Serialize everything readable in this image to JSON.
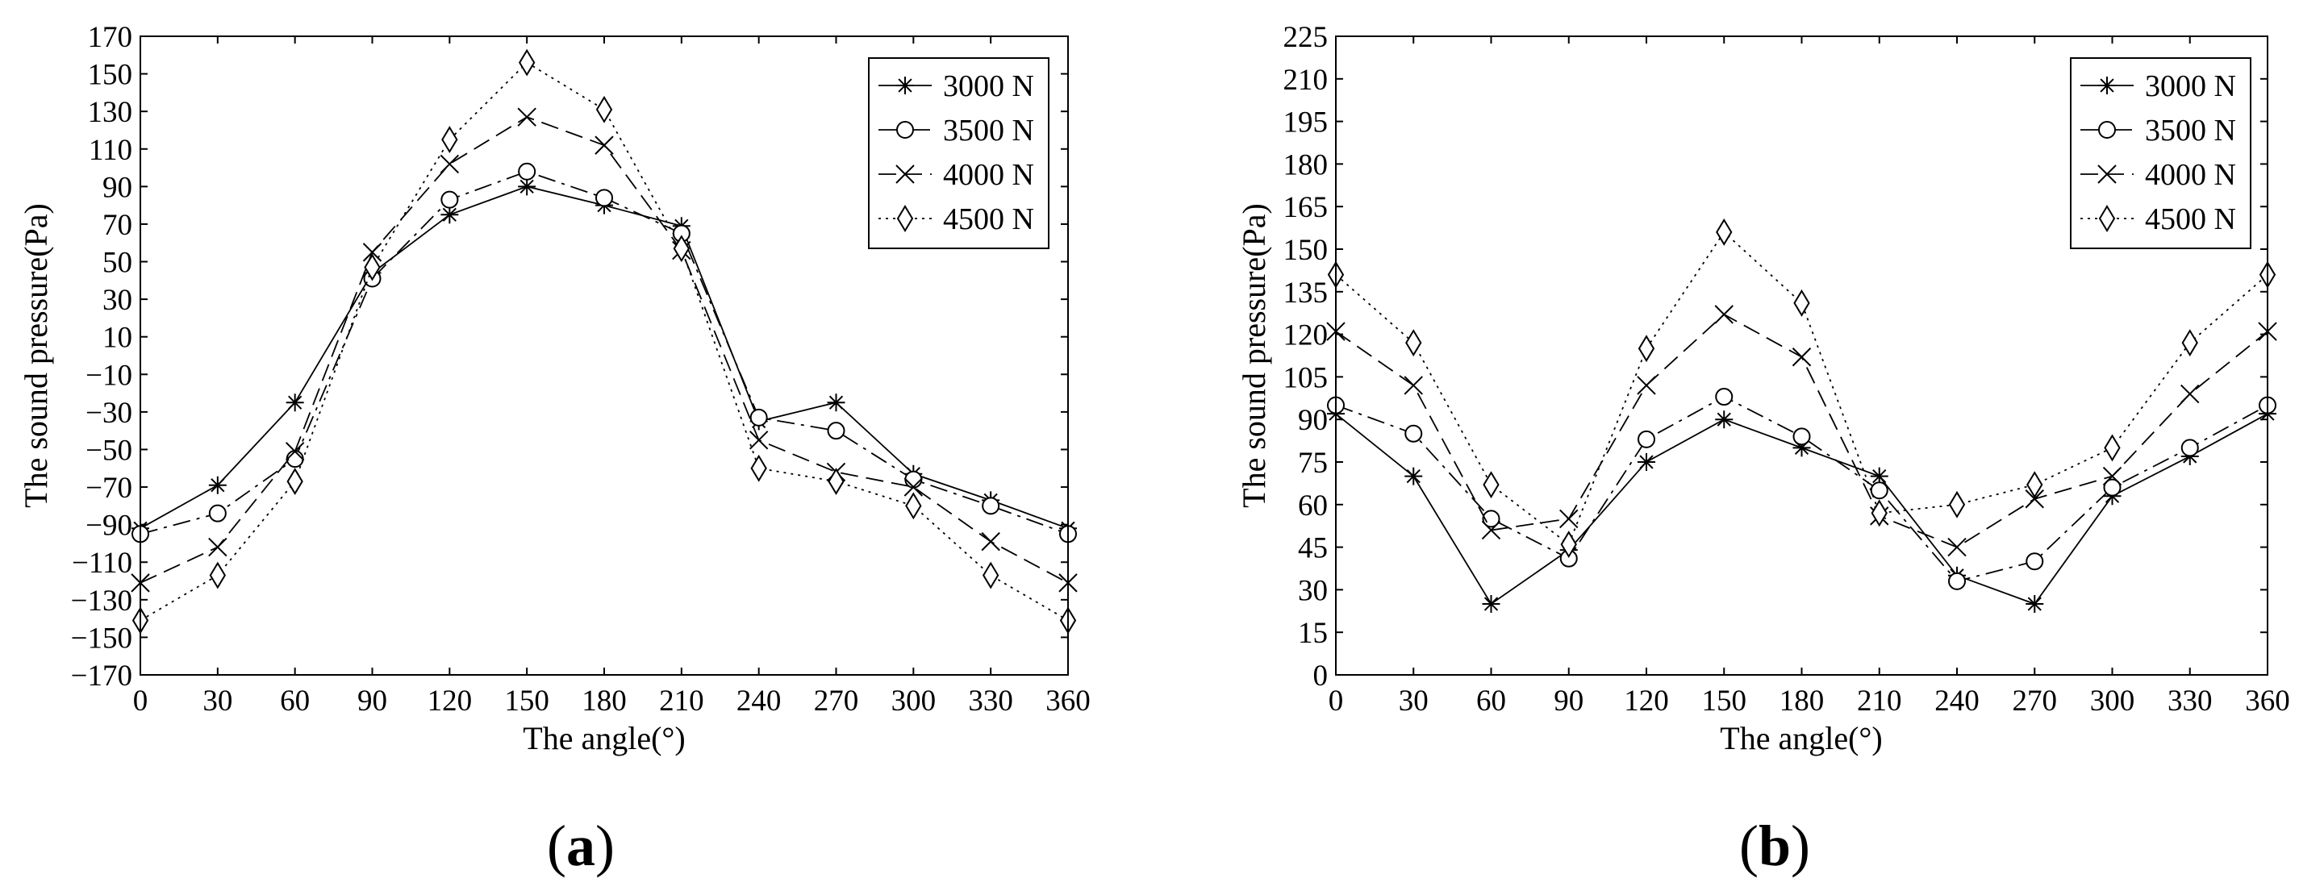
{
  "chart_data": [
    {
      "type": "line",
      "panel_label": "(a)",
      "panel_letter": "a",
      "xlabel": "The angle(°)",
      "ylabel": "The sound pressure(Pa)",
      "xlim": [
        0,
        360
      ],
      "ylim": [
        -170,
        170
      ],
      "xticks": [
        0,
        30,
        60,
        90,
        120,
        150,
        180,
        210,
        240,
        270,
        300,
        330,
        360
      ],
      "yticks": [
        -170,
        -150,
        -130,
        -110,
        -90,
        -70,
        -50,
        -30,
        -10,
        10,
        30,
        50,
        70,
        90,
        110,
        130,
        150,
        170
      ],
      "grid": false,
      "legend_position": "top-right",
      "x": [
        0,
        30,
        60,
        90,
        120,
        150,
        180,
        210,
        240,
        270,
        300,
        330,
        360
      ],
      "series": [
        {
          "name": "3000 N",
          "marker": "asterisk",
          "line": "solid",
          "values": [
            -92,
            -69,
            -25,
            44,
            75,
            90,
            80,
            69,
            -35,
            -25,
            -63,
            -77,
            -92
          ]
        },
        {
          "name": "3500 N",
          "marker": "circle",
          "line": "dashdot",
          "values": [
            -95,
            -84,
            -55,
            41,
            83,
            98,
            84,
            65,
            -33,
            -40,
            -66,
            -80,
            -95
          ]
        },
        {
          "name": "4000 N",
          "marker": "x",
          "line": "dashed",
          "values": [
            -121,
            -102,
            -51,
            55,
            102,
            127,
            112,
            56,
            -45,
            -62,
            -70,
            -99,
            -121
          ]
        },
        {
          "name": "4500 N",
          "marker": "diamond",
          "line": "dotted",
          "values": [
            -141,
            -117,
            -67,
            47,
            115,
            156,
            131,
            57,
            -60,
            -67,
            -80,
            -117,
            -141
          ]
        }
      ]
    },
    {
      "type": "line",
      "panel_label": "(b)",
      "panel_letter": "b",
      "xlabel": "The angle(°)",
      "ylabel": "The sound pressure(Pa)",
      "xlim": [
        0,
        360
      ],
      "ylim": [
        0,
        225
      ],
      "xticks": [
        0,
        30,
        60,
        90,
        120,
        150,
        180,
        210,
        240,
        270,
        300,
        330,
        360
      ],
      "yticks": [
        0,
        15,
        30,
        45,
        60,
        75,
        90,
        105,
        120,
        135,
        150,
        165,
        180,
        195,
        210,
        225
      ],
      "grid": false,
      "legend_position": "top-right",
      "x": [
        0,
        30,
        60,
        90,
        120,
        150,
        180,
        210,
        240,
        270,
        300,
        330,
        360
      ],
      "series": [
        {
          "name": "3000 N",
          "marker": "asterisk",
          "line": "solid",
          "values": [
            92,
            70,
            25,
            44,
            75,
            90,
            80,
            70,
            35,
            25,
            63,
            77,
            92
          ]
        },
        {
          "name": "3500 N",
          "marker": "circle",
          "line": "dashdot",
          "values": [
            95,
            85,
            55,
            41,
            83,
            98,
            84,
            65,
            33,
            40,
            66,
            80,
            95
          ]
        },
        {
          "name": "4000 N",
          "marker": "x",
          "line": "dashed",
          "values": [
            121,
            102,
            51,
            55,
            102,
            127,
            112,
            56,
            45,
            62,
            70,
            99,
            121
          ]
        },
        {
          "name": "4500 N",
          "marker": "diamond",
          "line": "dotted",
          "values": [
            141,
            117,
            67,
            46,
            115,
            156,
            131,
            57,
            60,
            67,
            80,
            117,
            141
          ]
        }
      ]
    }
  ]
}
